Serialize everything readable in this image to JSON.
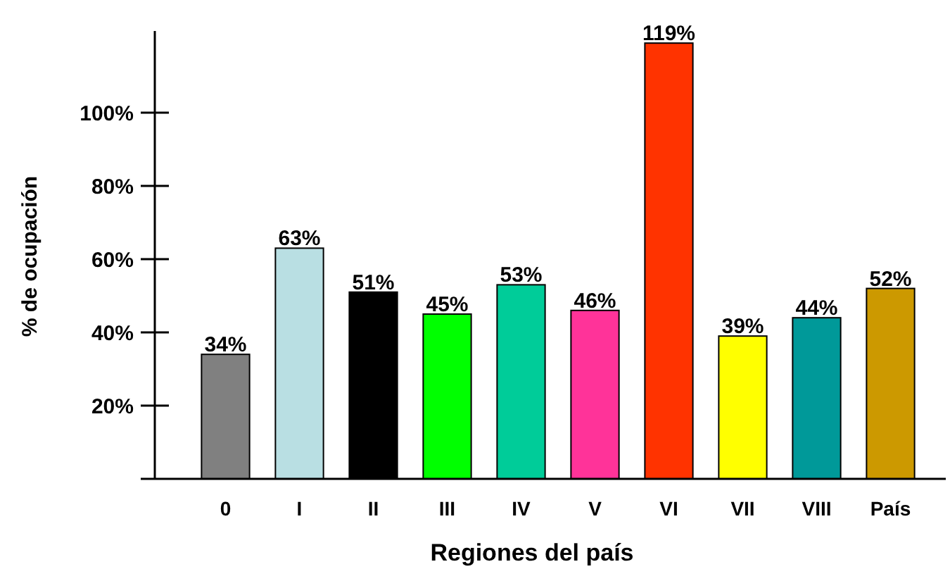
{
  "chart_data": {
    "type": "bar",
    "xlabel": "Regiones del país",
    "ylabel": "% de ocupación",
    "categories": [
      "0",
      "I",
      "II",
      "III",
      "IV",
      "V",
      "VI",
      "VII",
      "VIII",
      "País"
    ],
    "values": [
      34,
      63,
      51,
      45,
      53,
      46,
      119,
      39,
      44,
      52
    ],
    "value_labels": [
      "34%",
      "63%",
      "51%",
      "45%",
      "53%",
      "46%",
      "119%",
      "39%",
      "44%",
      "52%"
    ],
    "colors": [
      "#808080",
      "#b9dfe3",
      "#000000",
      "#00ff00",
      "#00cc99",
      "#ff3399",
      "#ff3300",
      "#ffff00",
      "#009999",
      "#cc9900"
    ],
    "ylim": [
      0,
      120
    ],
    "yticks": [
      {
        "value": 20,
        "label": "20%"
      },
      {
        "value": 40,
        "label": "40%"
      },
      {
        "value": 60,
        "label": "60%"
      },
      {
        "value": 80,
        "label": "80%"
      },
      {
        "value": 100,
        "label": "100%"
      }
    ],
    "grid": false
  }
}
